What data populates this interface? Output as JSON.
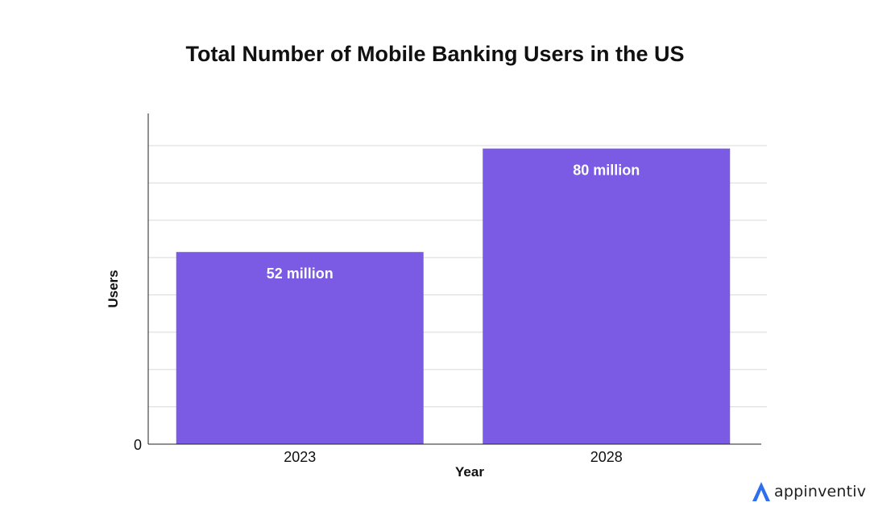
{
  "chart_data": {
    "type": "bar",
    "title": "Total Number of Mobile Banking Users in the US",
    "xlabel": "Year",
    "ylabel": "Users",
    "categories": [
      "2023",
      "2028"
    ],
    "values": [
      52,
      80
    ],
    "data_labels": [
      "52 million",
      "80 million"
    ],
    "y_tick_labels": [
      "0"
    ],
    "ylim": [
      0,
      89.5
    ],
    "grid": true,
    "legend": "none",
    "bar_color": "#7b5ae4"
  },
  "brand": {
    "logo_text": "appinventiv",
    "logo_icon": "appinventiv-a-icon",
    "logo_color": "#2f6fed"
  }
}
